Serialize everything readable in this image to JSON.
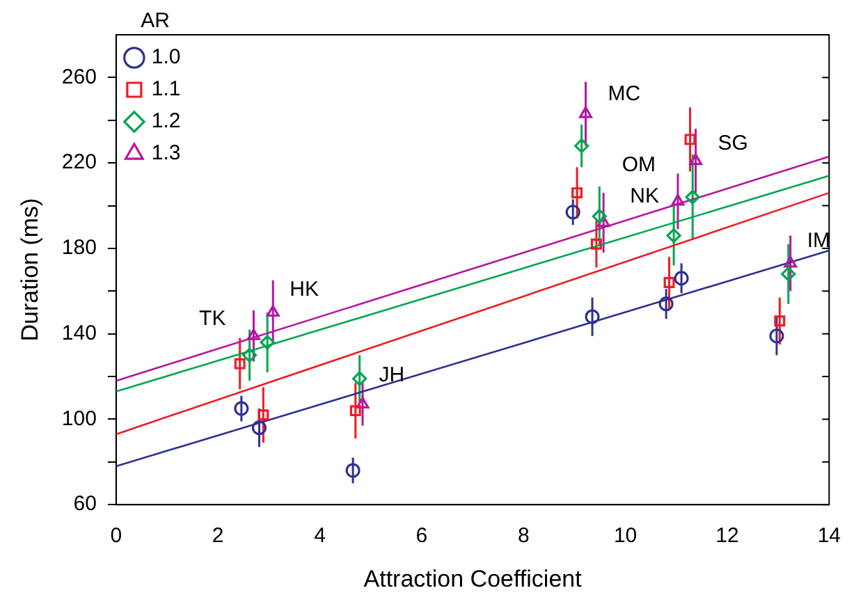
{
  "chart_data": {
    "type": "scatter",
    "xlabel": "Attraction Coefficient",
    "ylabel": "Duration (ms)",
    "legend_title": "AR",
    "legend": "top left",
    "grid": false,
    "xlim": [
      0,
      14
    ],
    "xticks": [
      0,
      2,
      4,
      6,
      8,
      10,
      12,
      14
    ],
    "ylim": [
      60,
      280
    ],
    "yticks": [
      60,
      {
        "value": 80,
        "label": null
      },
      100,
      {
        "value": 120,
        "label": null
      },
      140,
      {
        "value": 160,
        "label": null
      },
      180,
      {
        "value": 200,
        "label": null
      },
      220,
      {
        "value": 240,
        "label": null
      },
      260
    ],
    "series": [
      {
        "name": "1.0",
        "marker": "circle",
        "color": "#2e3192",
        "x": [
          2.46,
          2.81,
          4.65,
          8.97,
          9.35,
          10.8,
          11.1,
          12.97
        ],
        "values": [
          105,
          96,
          76,
          197,
          148,
          154,
          166,
          139
        ],
        "errors": [
          6,
          9,
          6,
          6,
          9,
          7,
          7,
          9
        ]
      },
      {
        "name": "1.1",
        "marker": "square",
        "color": "#ed1c24",
        "x": [
          2.43,
          2.89,
          4.7,
          9.05,
          9.43,
          10.86,
          11.27,
          13.03
        ],
        "values": [
          126,
          102,
          104,
          206,
          182,
          164,
          231,
          146
        ],
        "errors": [
          12,
          13,
          13,
          12,
          11,
          12,
          15,
          11
        ]
      },
      {
        "name": "1.2",
        "marker": "diamond",
        "color": "#00a651",
        "x": [
          2.62,
          2.97,
          4.78,
          9.14,
          9.49,
          10.95,
          11.32,
          13.2
        ],
        "values": [
          130,
          136,
          119,
          228,
          195,
          186,
          204,
          168
        ],
        "errors": [
          12,
          14,
          11,
          10,
          14,
          14,
          20,
          14
        ]
      },
      {
        "name": "1.3",
        "marker": "triangle",
        "color": "#b5179e",
        "x": [
          2.7,
          3.08,
          4.84,
          9.22,
          9.57,
          11.03,
          11.38,
          13.24
        ],
        "values": [
          139,
          150,
          107,
          243,
          192,
          202,
          221,
          173
        ],
        "errors": [
          12,
          15,
          10,
          15,
          14,
          13,
          15,
          13
        ]
      },
      {
        "type": "line",
        "marker": "none",
        "color": "#2e3192",
        "x": [
          0,
          14
        ],
        "values": [
          78,
          179
        ]
      },
      {
        "type": "line",
        "marker": "none",
        "color": "#ed1c24",
        "x": [
          0,
          14
        ],
        "values": [
          93,
          206
        ]
      },
      {
        "type": "line",
        "marker": "none",
        "color": "#00a651",
        "x": [
          0,
          14
        ],
        "values": [
          113,
          214
        ]
      },
      {
        "type": "line",
        "marker": "none",
        "color": "#b5179e",
        "x": [
          0,
          14
        ],
        "values": [
          118,
          223
        ]
      }
    ],
    "annotations": [
      {
        "text": "TK",
        "x": 2.7,
        "y": 139
      },
      {
        "text": "HK",
        "x": 3.08,
        "y": 150
      },
      {
        "text": "JH",
        "x": 4.78,
        "y": 119
      },
      {
        "text": "MC",
        "x": 9.22,
        "y": 243
      },
      {
        "text": "NK",
        "x": 9.49,
        "y": 195
      },
      {
        "text": "OM",
        "x": 11.03,
        "y": 202
      },
      {
        "text": "SG",
        "x": 11.27,
        "y": 231
      },
      {
        "text": "IM",
        "x": 13.24,
        "y": 173
      }
    ]
  }
}
